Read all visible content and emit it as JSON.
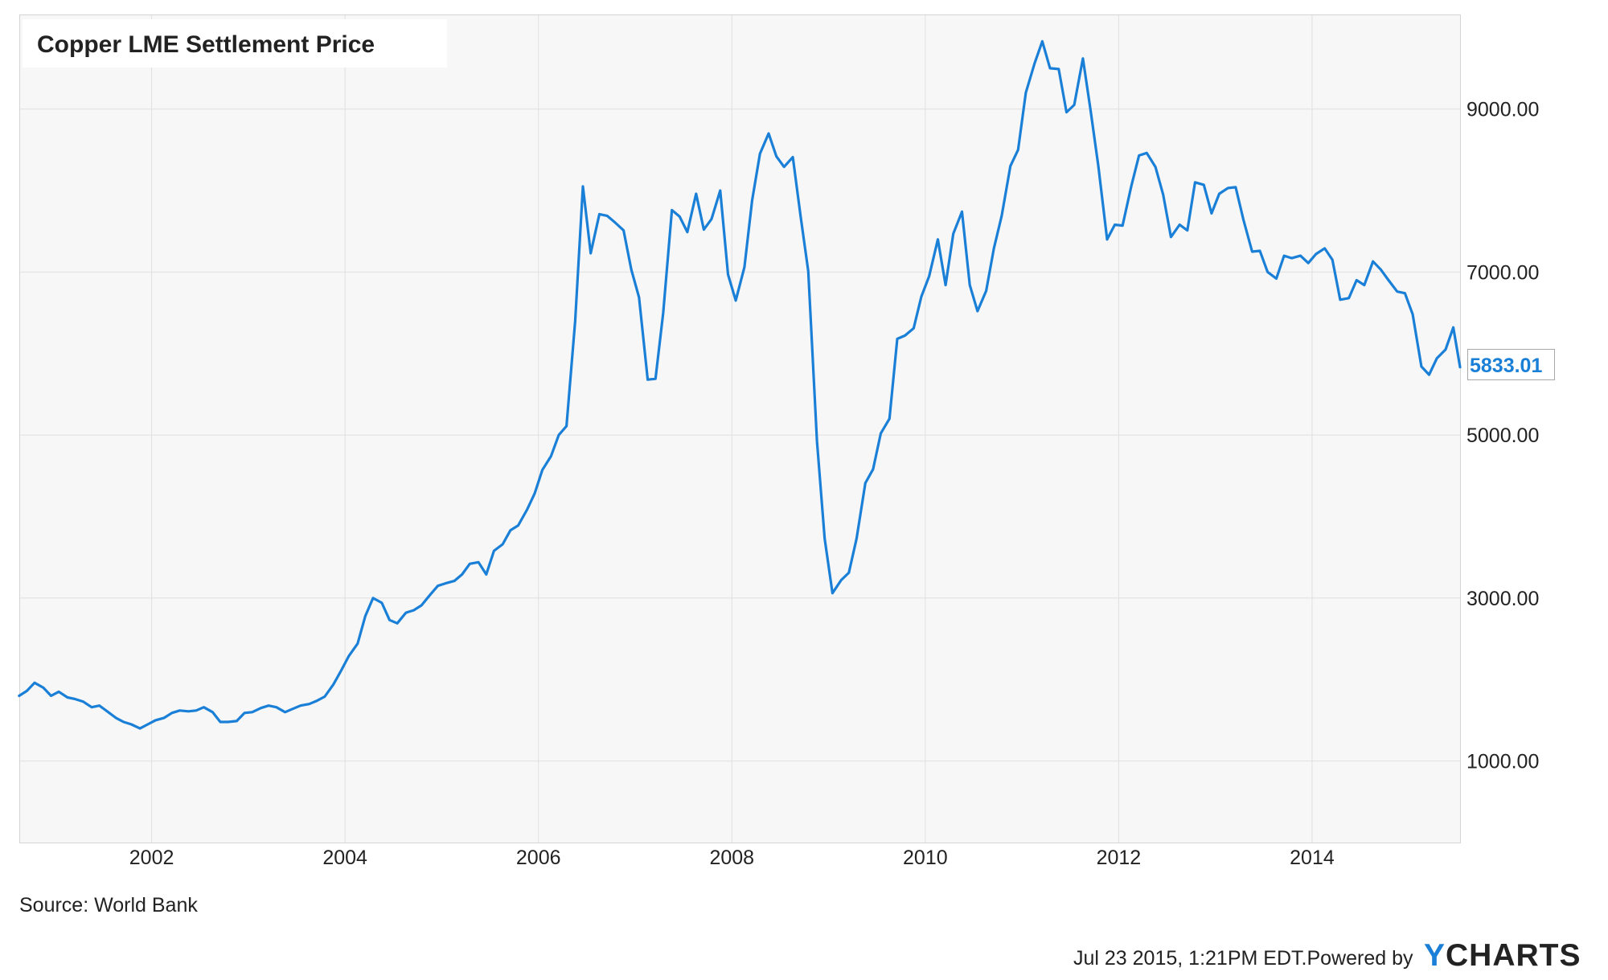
{
  "chart_data": {
    "type": "line",
    "title": "Copper LME Settlement Price",
    "xlabel": "",
    "ylabel": "",
    "x_ticks": [
      "2002",
      "2004",
      "2006",
      "2008",
      "2010",
      "2012",
      "2014"
    ],
    "y_ticks": [
      "1000.00",
      "3000.00",
      "5000.00",
      "7000.00",
      "9000.00"
    ],
    "xlim": [
      2000.64,
      2015.53
    ],
    "ylim": [
      0,
      10150
    ],
    "grid": true,
    "line_color": "#1a7fd6",
    "last_value_label": "5833.01",
    "series": [
      {
        "x": [
          2000.63,
          2000.71,
          2000.79,
          2000.88,
          2000.96,
          2001.04,
          2001.13,
          2001.21,
          2001.29,
          2001.38,
          2001.46,
          2001.54,
          2001.63,
          2001.71,
          2001.79,
          2001.88,
          2001.96,
          2002.04,
          2002.13,
          2002.21,
          2002.29,
          2002.38,
          2002.46,
          2002.54,
          2002.63,
          2002.71,
          2002.79,
          2002.88,
          2002.96,
          2003.04,
          2003.13,
          2003.21,
          2003.29,
          2003.38,
          2003.46,
          2003.54,
          2003.63,
          2003.71,
          2003.79,
          2003.88,
          2003.96,
          2004.04,
          2004.13,
          2004.21,
          2004.29,
          2004.38,
          2004.46,
          2004.54,
          2004.63,
          2004.71,
          2004.79,
          2004.88,
          2004.96,
          2005.04,
          2005.13,
          2005.21,
          2005.29,
          2005.38,
          2005.46,
          2005.54,
          2005.63,
          2005.71,
          2005.79,
          2005.88,
          2005.96,
          2006.04,
          2006.13,
          2006.21,
          2006.29,
          2006.38,
          2006.46,
          2006.54,
          2006.63,
          2006.71,
          2006.79,
          2006.88,
          2006.96,
          2007.04,
          2007.13,
          2007.21,
          2007.29,
          2007.38,
          2007.46,
          2007.54,
          2007.63,
          2007.71,
          2007.79,
          2007.88,
          2007.96,
          2008.04,
          2008.13,
          2008.21,
          2008.29,
          2008.38,
          2008.46,
          2008.54,
          2008.63,
          2008.71,
          2008.79,
          2008.88,
          2008.96,
          2009.04,
          2009.13,
          2009.21,
          2009.29,
          2009.38,
          2009.46,
          2009.54,
          2009.63,
          2009.71,
          2009.79,
          2009.88,
          2009.96,
          2010.04,
          2010.13,
          2010.21,
          2010.29,
          2010.38,
          2010.46,
          2010.54,
          2010.63,
          2010.71,
          2010.79,
          2010.88,
          2010.96,
          2011.04,
          2011.13,
          2011.21,
          2011.29,
          2011.38,
          2011.46,
          2011.54,
          2011.63,
          2011.71,
          2011.79,
          2011.88,
          2011.96,
          2012.04,
          2012.13,
          2012.21,
          2012.29,
          2012.38,
          2012.46,
          2012.54,
          2012.63,
          2012.71,
          2012.79,
          2012.88,
          2012.96,
          2013.04,
          2013.13,
          2013.21,
          2013.29,
          2013.38,
          2013.46,
          2013.54,
          2013.63,
          2013.71,
          2013.79,
          2013.88,
          2013.96,
          2014.04,
          2014.13,
          2014.21,
          2014.29,
          2014.38,
          2014.46,
          2014.54,
          2014.63,
          2014.71,
          2014.79,
          2014.88,
          2014.96,
          2015.04,
          2015.13,
          2015.21,
          2015.29,
          2015.38,
          2015.46,
          2015.53
        ],
        "values": [
          1800,
          1860,
          1960,
          1900,
          1800,
          1850,
          1780,
          1760,
          1730,
          1660,
          1680,
          1610,
          1530,
          1480,
          1450,
          1400,
          1450,
          1500,
          1530,
          1590,
          1620,
          1610,
          1620,
          1660,
          1600,
          1480,
          1480,
          1490,
          1590,
          1600,
          1650,
          1680,
          1660,
          1600,
          1640,
          1680,
          1700,
          1740,
          1790,
          1940,
          2110,
          2290,
          2440,
          2780,
          3000,
          2940,
          2730,
          2690,
          2820,
          2850,
          2910,
          3040,
          3150,
          3180,
          3210,
          3290,
          3420,
          3440,
          3290,
          3580,
          3660,
          3830,
          3890,
          4080,
          4280,
          4570,
          4740,
          5000,
          5110,
          6400,
          8050,
          7230,
          7710,
          7690,
          7610,
          7510,
          7030,
          6690,
          5680,
          5690,
          6500,
          7760,
          7680,
          7490,
          7960,
          7520,
          7650,
          8000,
          6970,
          6650,
          7060,
          7880,
          8450,
          8700,
          8420,
          8290,
          8410,
          7690,
          7010,
          4930,
          3730,
          3060,
          3220,
          3310,
          3730,
          4410,
          4580,
          5020,
          5200,
          6180,
          6220,
          6310,
          6700,
          6950,
          7400,
          6840,
          7470,
          7740,
          6840,
          6520,
          6770,
          7290,
          7690,
          8300,
          8500,
          9200,
          9560,
          9830,
          9500,
          9490,
          8960,
          9050,
          9620,
          8980,
          8300,
          7400,
          7580,
          7570,
          8050,
          8430,
          8460,
          8290,
          7950,
          7430,
          7580,
          7510,
          8100,
          8070,
          7720,
          7960,
          8030,
          8040,
          7640,
          7250,
          7260,
          7000,
          6920,
          7200,
          7170,
          7200,
          7110,
          7220,
          7290,
          7150,
          6660,
          6680,
          6900,
          6840,
          7130,
          7030,
          6900,
          6760,
          6740,
          6480,
          5840,
          5740,
          5940,
          6050,
          6320,
          5833
        ]
      }
    ]
  },
  "footer": {
    "source": "Source: World Bank",
    "timestamp": "Jul 23 2015, 1:21PM EDT.",
    "powered_by": "Powered by",
    "brand_initial": "Y",
    "brand_rest": "CHARTS"
  }
}
